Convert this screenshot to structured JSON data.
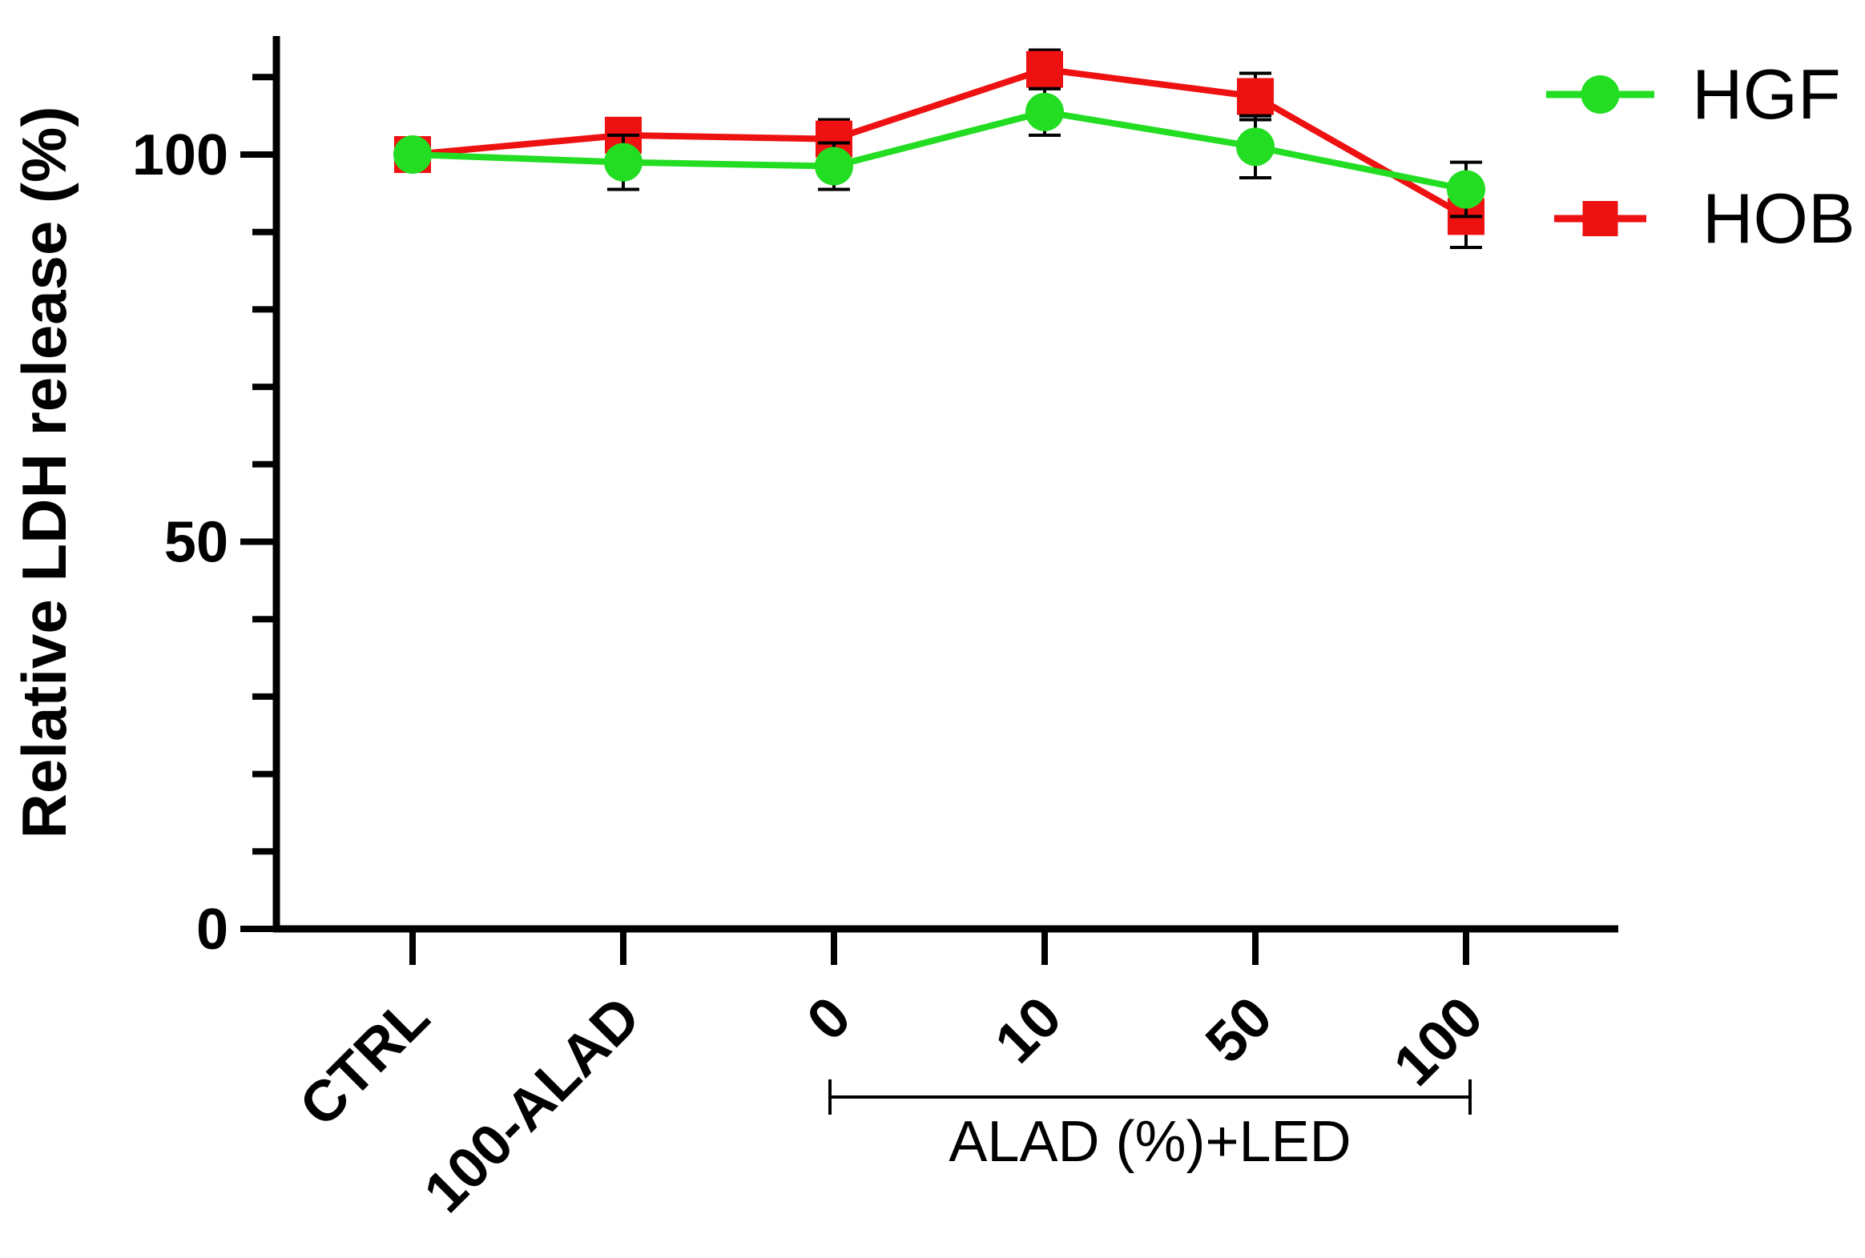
{
  "chart_data": {
    "type": "line",
    "ylabel": "Relative LDH release (%)",
    "xlabel": "",
    "categories": [
      "CTRL",
      "100-ALAD",
      "0",
      "10",
      "50",
      "100"
    ],
    "group_label": "ALAD (%)+LED",
    "group_categories": [
      "0",
      "10",
      "50",
      "100"
    ],
    "ylim": [
      0,
      115
    ],
    "yticks": [
      0,
      50,
      100
    ],
    "series": [
      {
        "name": "HGF",
        "color": "#22dd22",
        "marker": "circle",
        "values": [
          100,
          99,
          98.5,
          105.5,
          101,
          95.5
        ],
        "errors": [
          0,
          3.5,
          3,
          3,
          4,
          3.5
        ]
      },
      {
        "name": "HOB",
        "color": "#ee1111",
        "marker": "square",
        "values": [
          100,
          102.5,
          102,
          111,
          107.5,
          92
        ],
        "errors": [
          0,
          2,
          2.5,
          2.5,
          3,
          4
        ]
      }
    ],
    "legend_position": "top-right",
    "grid": false
  }
}
